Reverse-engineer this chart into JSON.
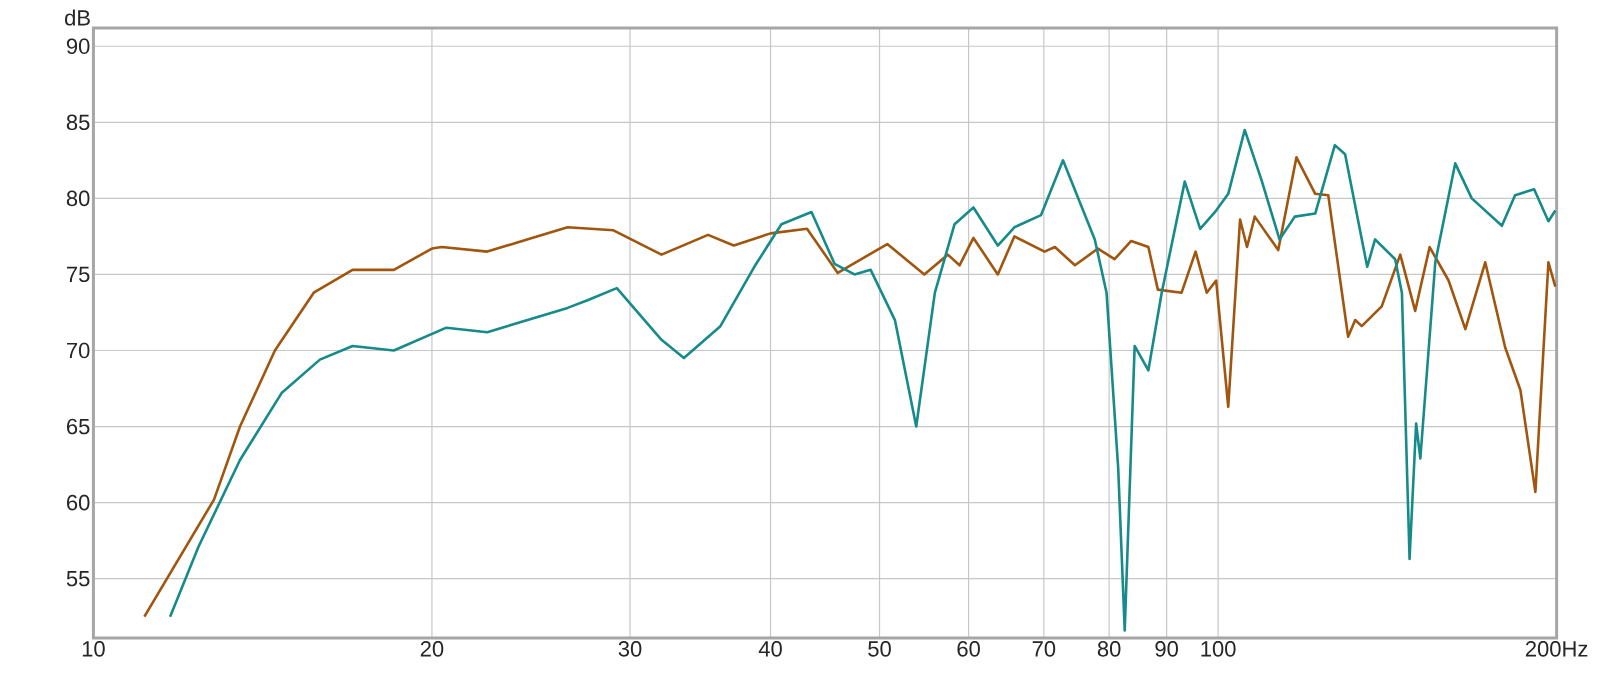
{
  "chart_data": {
    "type": "line",
    "ylabel": "dB",
    "log": "x",
    "grid": true,
    "marker": "none",
    "line_style": "solid",
    "xlim": [
      10,
      200
    ],
    "ylim": [
      51.1,
      91.2
    ],
    "xticks": [
      10,
      20,
      30,
      40,
      50,
      60,
      70,
      80,
      90,
      100,
      {
        "value": 200,
        "label": "200Hz"
      }
    ],
    "yticks": [
      55,
      60,
      65,
      70,
      75,
      80,
      85,
      90
    ],
    "series": [
      {
        "color": "#a0560e",
        "x": [
          11.1,
          12.8,
          13.5,
          14.5,
          15.7,
          17.0,
          18.5,
          20.0,
          20.4,
          22.4,
          24.3,
          26.4,
          29.0,
          32.0,
          35.2,
          37.1,
          40.0,
          43.1,
          45.9,
          50.8,
          54.8,
          57.5,
          58.9,
          60.6,
          63.7,
          65.9,
          70.1,
          71.6,
          74.6,
          78.2,
          80.9,
          83.7,
          86.7,
          88.4,
          92.8,
          95.5,
          97.7,
          99.6,
          102.1,
          104.6,
          106.1,
          107.8,
          113.1,
          117.4,
          122.0,
          125.3,
          130.5,
          132.4,
          134.2,
          139.8,
          145.2,
          149.7,
          154.2,
          160.3,
          165.9,
          172.8,
          180.0,
          185.7,
          191.5,
          196.7,
          199.5
        ],
        "values": [
          52.5,
          60.2,
          65.0,
          70.0,
          73.8,
          75.3,
          75.3,
          76.7,
          76.8,
          76.5,
          77.3,
          78.1,
          77.9,
          76.3,
          77.6,
          76.9,
          77.7,
          78.0,
          75.1,
          77.0,
          75.0,
          76.3,
          75.6,
          77.4,
          75.0,
          77.5,
          76.5,
          76.8,
          75.6,
          76.7,
          76.0,
          77.2,
          76.8,
          74.0,
          73.8,
          76.5,
          73.8,
          74.6,
          66.3,
          78.6,
          76.8,
          78.8,
          76.6,
          82.7,
          80.3,
          80.2,
          70.9,
          72.0,
          71.6,
          72.9,
          76.3,
          72.6,
          76.8,
          74.6,
          71.4,
          75.8,
          70.2,
          67.4,
          60.7,
          75.8,
          74.2
        ]
      },
      {
        "color": "#178a8a",
        "x": [
          11.7,
          12.4,
          13.5,
          14.7,
          15.9,
          17.0,
          18.5,
          20.6,
          22.4,
          26.4,
          27.5,
          29.2,
          32.0,
          33.5,
          36.1,
          38.7,
          40.9,
          43.5,
          45.6,
          47.5,
          49.1,
          51.6,
          53.9,
          56.0,
          58.3,
          60.6,
          63.7,
          65.9,
          69.6,
          72.8,
          77.7,
          79.6,
          81.5,
          82.6,
          84.3,
          86.7,
          89.1,
          93.4,
          96.4,
          99.6,
          102.1,
          105.6,
          109.3,
          113.4,
          117.0,
          122.0,
          127.0,
          129.7,
          135.7,
          137.9,
          143.7,
          145.7,
          148.0,
          150.0,
          151.3,
          156.0,
          162.5,
          168.1,
          178.8,
          183.7,
          191.0,
          196.7,
          199.5
        ],
        "values": [
          52.5,
          57.1,
          62.8,
          67.2,
          69.4,
          70.3,
          70.0,
          71.5,
          71.2,
          72.8,
          73.3,
          74.1,
          70.7,
          69.5,
          71.6,
          75.5,
          78.3,
          79.1,
          75.7,
          75.0,
          75.3,
          72.0,
          65.0,
          73.8,
          78.3,
          79.4,
          76.9,
          78.1,
          78.9,
          82.5,
          77.3,
          73.8,
          62.3,
          51.6,
          70.3,
          68.7,
          73.8,
          81.1,
          78.0,
          79.2,
          80.3,
          84.5,
          81.2,
          77.3,
          78.8,
          79.0,
          83.5,
          82.9,
          75.5,
          77.3,
          76.0,
          73.8,
          56.3,
          65.2,
          62.9,
          75.8,
          82.3,
          80.0,
          78.2,
          80.2,
          80.6,
          78.5,
          79.2
        ]
      }
    ]
  }
}
